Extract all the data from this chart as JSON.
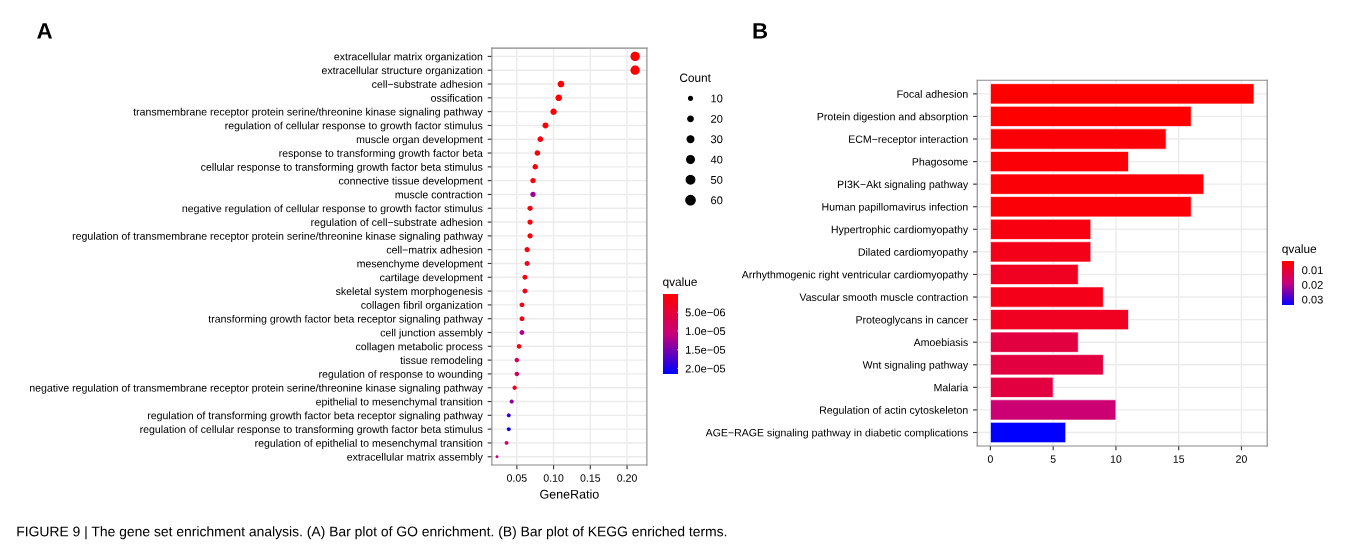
{
  "chart_data": [
    {
      "type": "scatter",
      "xlabel": "GeneRatio",
      "categories": [
        "extracellular matrix organization",
        "extracellular structure organization",
        "cell−substrate adhesion",
        "ossification",
        "transmembrane receptor protein serine/threonine kinase signaling pathway",
        "regulation of cellular response to growth factor stimulus",
        "muscle organ development",
        "response to transforming growth factor beta",
        "cellular response to transforming growth factor beta stimulus",
        "connective tissue development",
        "muscle contraction",
        "negative regulation of cellular response to growth factor stimulus",
        "regulation of cell−substrate adhesion",
        "regulation of transmembrane receptor protein serine/threonine kinase signaling pathway",
        "cell−matrix adhesion",
        "mesenchyme development",
        "cartilage development",
        "skeletal system morphogenesis",
        "collagen fibril organization",
        "transforming growth factor beta receptor signaling pathway",
        "cell junction assembly",
        "collagen metabolic process",
        "tissue remodeling",
        "regulation of response to wounding",
        "negative regulation of transmembrane receptor protein serine/threonine kinase signaling pathway",
        "epithelial to mesenchymal transition",
        "regulation of transforming growth factor beta receptor signaling pathway",
        "regulation of cellular response to transforming growth factor beta stimulus",
        "regulation of epithelial to mesenchymal transition",
        "extracellular matrix assembly"
      ],
      "values": [
        0.211,
        0.211,
        0.11,
        0.107,
        0.1,
        0.089,
        0.082,
        0.078,
        0.075,
        0.072,
        0.072,
        0.068,
        0.068,
        0.068,
        0.064,
        0.064,
        0.061,
        0.061,
        0.057,
        0.057,
        0.057,
        0.053,
        0.05,
        0.05,
        0.047,
        0.043,
        0.039,
        0.039,
        0.036,
        0.023
      ],
      "sizes": [
        60,
        60,
        31,
        30,
        28,
        25,
        23,
        22,
        21,
        20,
        20,
        19,
        19,
        19,
        18,
        18,
        17,
        17,
        16,
        16,
        16,
        15,
        14,
        14,
        13,
        12,
        11,
        11,
        10,
        6
      ],
      "cvalues": [
        2e-07,
        2e-07,
        5e-07,
        5e-07,
        6e-07,
        8e-07,
        1e-06,
        1e-06,
        1e-06,
        1.5e-06,
        1.3e-05,
        1e-06,
        1e-06,
        1e-06,
        1.5e-06,
        3e-06,
        2e-06,
        3e-06,
        2e-06,
        2e-06,
        1.2e-05,
        2e-06,
        8e-06,
        8e-06,
        3e-06,
        1.4e-05,
        1.9e-05,
        2.1e-05,
        8e-06,
        1.1e-05
      ],
      "xlim": [
        0.016,
        0.227
      ],
      "xticks": [
        {
          "value": 0.05,
          "label": "0.05"
        },
        {
          "value": 0.1,
          "label": "0.10"
        },
        {
          "value": 0.15,
          "label": "0.15"
        },
        {
          "value": 0.2,
          "label": "0.20"
        }
      ],
      "legend_title": "Count",
      "size_legend": [
        {
          "value": 10,
          "label": "10"
        },
        {
          "value": 20,
          "label": "20"
        },
        {
          "value": 30,
          "label": "30"
        },
        {
          "value": 40,
          "label": "40"
        },
        {
          "value": 50,
          "label": "50"
        },
        {
          "value": 60,
          "label": "60"
        }
      ],
      "orientation": "horizontal",
      "clabel": "qvalue",
      "clim": [
        2e-07,
        2.15e-05
      ],
      "cticks": [
        {
          "value": 5e-06,
          "label": "5.0e−06"
        },
        {
          "value": 1e-05,
          "label": "1.0e−05"
        },
        {
          "value": 1.5e-05,
          "label": "1.5e−05"
        },
        {
          "value": 2e-05,
          "label": "2.0e−05"
        }
      ],
      "grid": true,
      "marker": "circle",
      "annotations": [
        "A",
        "FIGURE 9 | The gene set enrichment analysis. (A) Bar plot of GO enrichment. (B) Bar plot of KEGG enriched terms."
      ]
    },
    {
      "type": "bar",
      "orientation": "horizontal",
      "categories": [
        "Focal adhesion",
        "Protein digestion and absorption",
        "ECM−receptor interaction",
        "Phagosome",
        "PI3K−Akt signaling pathway",
        "Human papillomavirus infection",
        "Hypertrophic cardiomyopathy",
        "Dilated cardiomyopathy",
        "Arrhythmogenic right ventricular cardiomyopathy",
        "Vascular smooth muscle contraction",
        "Proteoglycans in cancer",
        "Amoebiasis",
        "Wnt signaling pathway",
        "Malaria",
        "Regulation of actin cytoskeleton",
        "AGE−RAGE signaling pathway in diabetic complications"
      ],
      "values": [
        21,
        16,
        14,
        11,
        17,
        16,
        8,
        8,
        7,
        9,
        11,
        7,
        9,
        5,
        10,
        6
      ],
      "cvalues": [
        0.004,
        0.004,
        0.005,
        0.005,
        0.005,
        0.005,
        0.006,
        0.007,
        0.008,
        0.007,
        0.008,
        0.012,
        0.012,
        0.012,
        0.018,
        0.034
      ],
      "xlim": [
        -1.05,
        22.05
      ],
      "xticks": [
        0,
        5,
        10,
        15,
        20
      ],
      "clabel": "qvalue",
      "clim": [
        0.004,
        0.034
      ],
      "cticks": [
        0.01,
        0.02,
        0.03
      ],
      "grid": true,
      "annotations": [
        "B"
      ]
    }
  ]
}
